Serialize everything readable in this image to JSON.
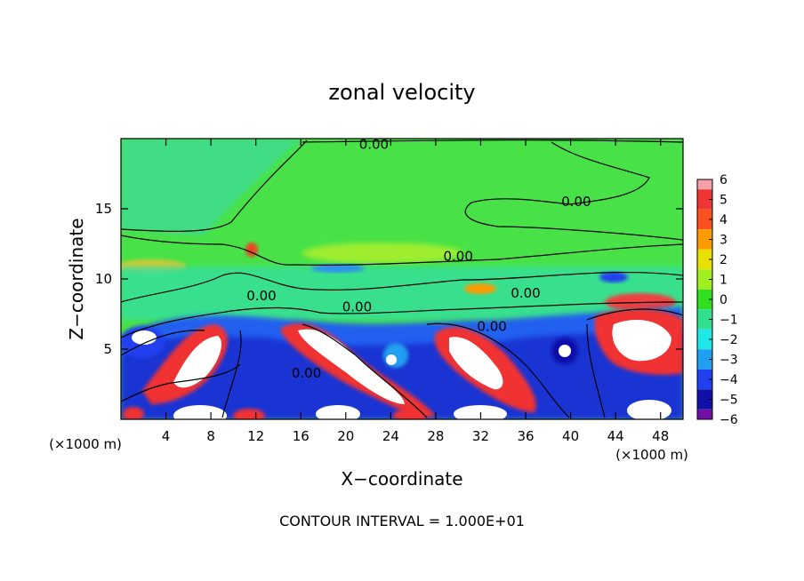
{
  "chart_data": {
    "type": "heatmap",
    "title": "zonal velocity",
    "xlabel": "X−coordinate",
    "ylabel": "Z−coordinate",
    "x_unit_left": "(×1000 m)",
    "x_unit_right": "(×1000 m)",
    "xlim": [
      0,
      50
    ],
    "ylim": [
      0,
      20
    ],
    "x_ticks": [
      4,
      8,
      12,
      16,
      20,
      24,
      28,
      32,
      36,
      40,
      44,
      48
    ],
    "y_ticks": [
      5,
      10,
      15
    ],
    "colorbar": {
      "ticks": [
        6,
        5,
        4,
        3,
        2,
        1,
        0,
        -1,
        -2,
        -3,
        -4,
        -5,
        -6
      ],
      "labels": [
        "6",
        "5",
        "4",
        "3",
        "2",
        "1",
        "0",
        "−1",
        "−2",
        "−3",
        "−4",
        "−5",
        "−6"
      ],
      "range": [
        -6,
        6
      ],
      "colors": [
        "#f5a0a8",
        "#f03535",
        "#ff5020",
        "#ff9a00",
        "#e8e000",
        "#a0ee20",
        "#30e020",
        "#30e090",
        "#20e8e8",
        "#20a0f0",
        "#2040f0",
        "#1010a8",
        "#7010a8"
      ]
    },
    "contour_labels": [
      {
        "text": "0.00",
        "x": 22.5,
        "y": 19.6
      },
      {
        "text": "0.00",
        "x": 40.5,
        "y": 15.5
      },
      {
        "text": "0.00",
        "x": 30.0,
        "y": 11.6
      },
      {
        "text": "0.00",
        "x": 12.5,
        "y": 8.8
      },
      {
        "text": "0.00",
        "x": 21.0,
        "y": 8.0
      },
      {
        "text": "0.00",
        "x": 36.0,
        "y": 9.0
      },
      {
        "text": "0.00",
        "x": 33.0,
        "y": 6.6
      },
      {
        "text": "0.00",
        "x": 16.5,
        "y": 3.3
      }
    ],
    "footer": "CONTOUR INTERVAL = 1.000E+01"
  }
}
